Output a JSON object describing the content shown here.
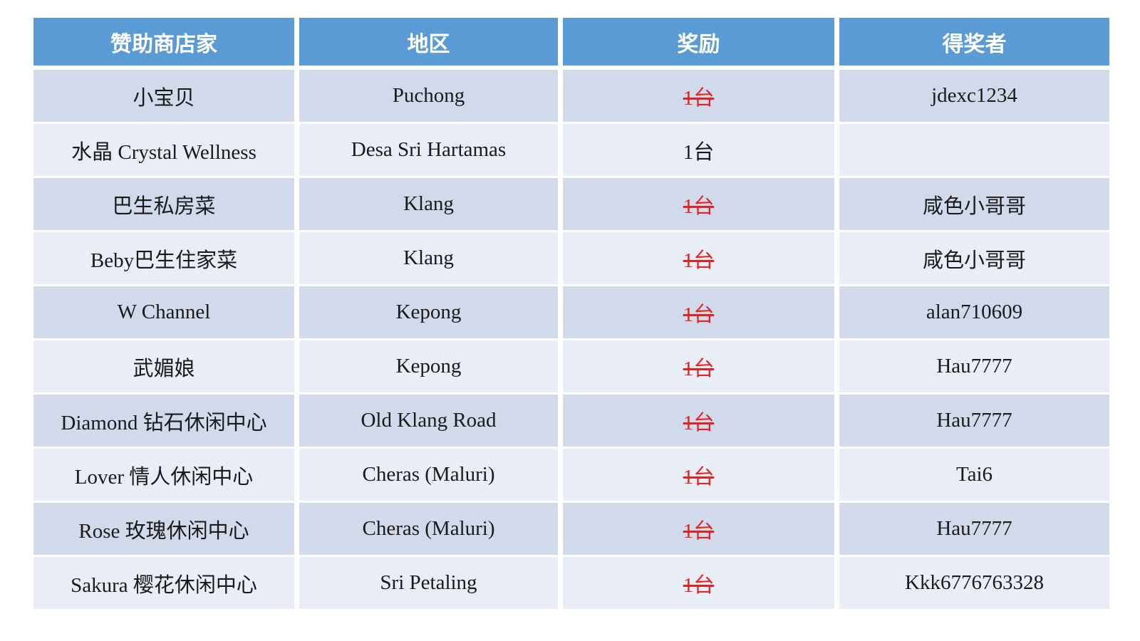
{
  "page": {
    "background": "#ffffff"
  },
  "table": {
    "headers": [
      "赞助商店家",
      "地区",
      "奖励",
      "得奖者"
    ],
    "rows": [
      {
        "store": "小宝贝",
        "region": "Puchong",
        "reward": "1台",
        "reward_struck": true,
        "winner": "jdexc1234"
      },
      {
        "store": "水晶 Crystal Wellness",
        "region": "Desa Sri Hartamas",
        "reward": "1台",
        "reward_struck": false,
        "winner": ""
      },
      {
        "store": "巴生私房菜",
        "region": "Klang",
        "reward": "1台",
        "reward_struck": true,
        "winner": "咸色小哥哥"
      },
      {
        "store": "Beby巴生住家菜",
        "region": "Klang",
        "reward": "1台",
        "reward_struck": true,
        "winner": "咸色小哥哥"
      },
      {
        "store": "W Channel",
        "region": "Kepong",
        "reward": "1台",
        "reward_struck": true,
        "winner": "alan710609"
      },
      {
        "store": "武媚娘",
        "region": "Kepong",
        "reward": "1台",
        "reward_struck": true,
        "winner": "Hau7777"
      },
      {
        "store": "Diamond 钻石休闲中心",
        "region": "Old Klang Road",
        "reward": "1台",
        "reward_struck": true,
        "winner": "Hau7777"
      },
      {
        "store": "Lover 情人休闲中心",
        "region": "Cheras (Maluri)",
        "reward": "1台",
        "reward_struck": true,
        "winner": "Tai6"
      },
      {
        "store": "Rose 玫瑰休闲中心",
        "region": "Cheras (Maluri)",
        "reward": "1台",
        "reward_struck": true,
        "winner": "Hau7777"
      },
      {
        "store": "Sakura 樱花休闲中心",
        "region": "Sri Petaling",
        "reward": "1台",
        "reward_struck": true,
        "winner": "Kkk6776763328"
      }
    ],
    "colors": {
      "header_bg": "#5b9bd5",
      "header_text": "#ffffff",
      "row_dark": "#d0daeb",
      "row_light": "#e9edf6",
      "body_text": "#1a1a1a",
      "struck_red": "#e42320",
      "separator": "#ffffff"
    }
  }
}
